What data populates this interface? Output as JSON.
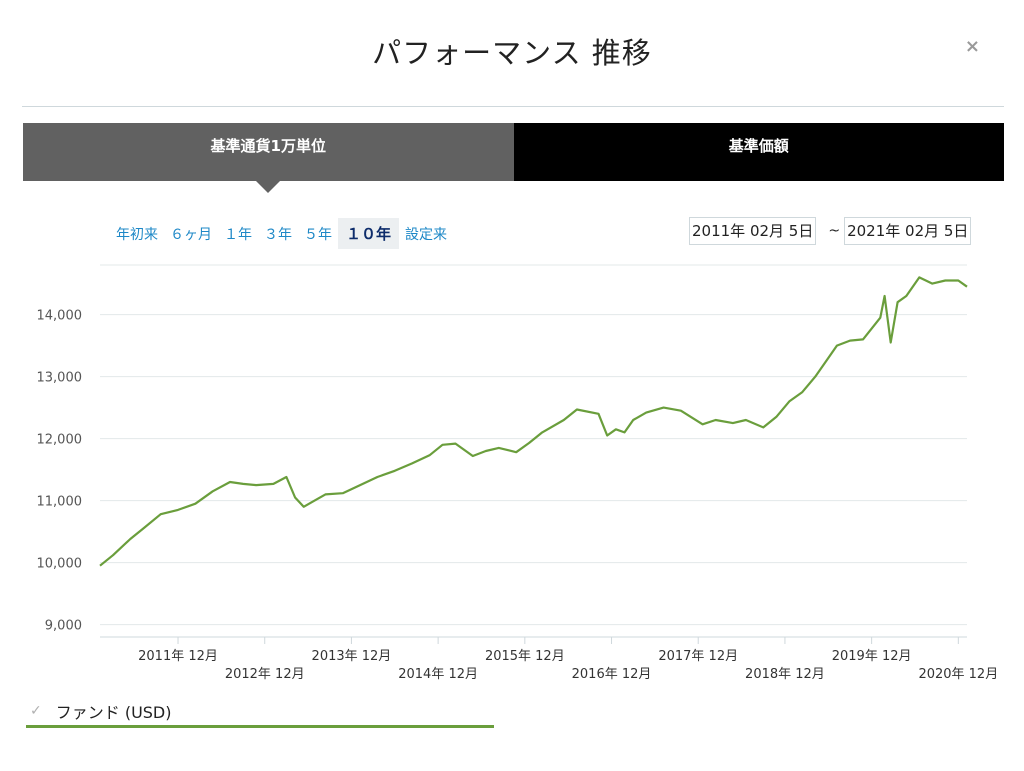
{
  "header": {
    "title": "パフォーマンス 推移",
    "close_label": "×"
  },
  "tabs": [
    {
      "label": "基準通貨1万単位",
      "active": true
    },
    {
      "label": "基準価額",
      "active": false
    }
  ],
  "ranges": [
    {
      "label": "年初来",
      "active": false
    },
    {
      "label": "６ヶ月",
      "active": false
    },
    {
      "label": "１年",
      "active": false
    },
    {
      "label": "３年",
      "active": false
    },
    {
      "label": "５年",
      "active": false
    },
    {
      "label": "１０年",
      "active": true
    },
    {
      "label": "設定来",
      "active": false
    }
  ],
  "date_range": {
    "start": "2011年 02月 5日",
    "separator": "~",
    "end": "2021年 02月 5日"
  },
  "legend": {
    "checked": true,
    "check_glyph": "✓",
    "label": "ファンド (USD)"
  },
  "colors": {
    "line": "#6a9e3c",
    "grid": "#e3e8ea",
    "axis_text": "#555555",
    "tab_active": "#616161",
    "tab_inactive": "#000000",
    "link": "#1e88c7"
  },
  "chart_data": {
    "type": "line",
    "ylim": [
      8800,
      14800
    ],
    "xlim": [
      2011.1,
      2021.1
    ],
    "yticks": [
      {
        "value": 9000,
        "label": "9,000"
      },
      {
        "value": 10000,
        "label": "10,000"
      },
      {
        "value": 11000,
        "label": "11,000"
      },
      {
        "value": 12000,
        "label": "12,000"
      },
      {
        "value": 13000,
        "label": "13,000"
      },
      {
        "value": 14000,
        "label": "14,000"
      }
    ],
    "xticks": [
      {
        "value": 2012.0,
        "label": "2011年 12月",
        "row": 1
      },
      {
        "value": 2013.0,
        "label": "2012年 12月",
        "row": 2
      },
      {
        "value": 2014.0,
        "label": "2013年 12月",
        "row": 1
      },
      {
        "value": 2015.0,
        "label": "2014年 12月",
        "row": 2
      },
      {
        "value": 2016.0,
        "label": "2015年 12月",
        "row": 1
      },
      {
        "value": 2017.0,
        "label": "2016年 12月",
        "row": 2
      },
      {
        "value": 2018.0,
        "label": "2017年 12月",
        "row": 1
      },
      {
        "value": 2019.0,
        "label": "2018年 12月",
        "row": 2
      },
      {
        "value": 2020.0,
        "label": "2019年 12月",
        "row": 1
      },
      {
        "value": 2021.0,
        "label": "2020年 12月",
        "row": 2
      }
    ],
    "grid": true,
    "series": [
      {
        "name": "ファンド (USD)",
        "x": [
          2011.1,
          2011.25,
          2011.45,
          2011.6,
          2011.8,
          2012.0,
          2012.2,
          2012.4,
          2012.6,
          2012.75,
          2012.9,
          2013.1,
          2013.25,
          2013.35,
          2013.45,
          2013.55,
          2013.7,
          2013.9,
          2014.1,
          2014.3,
          2014.5,
          2014.7,
          2014.9,
          2015.05,
          2015.2,
          2015.4,
          2015.55,
          2015.7,
          2015.9,
          2016.05,
          2016.2,
          2016.45,
          2016.6,
          2016.85,
          2016.95,
          2017.05,
          2017.15,
          2017.25,
          2017.4,
          2017.6,
          2017.8,
          2018.05,
          2018.2,
          2018.4,
          2018.55,
          2018.75,
          2018.9,
          2019.05,
          2019.2,
          2019.35,
          2019.5,
          2019.6,
          2019.75,
          2019.9,
          2020.1,
          2020.15,
          2020.22,
          2020.3,
          2020.4,
          2020.55,
          2020.7,
          2020.85,
          2021.0,
          2021.1
        ],
        "values": [
          9950,
          10120,
          10380,
          10550,
          10780,
          10850,
          10950,
          11150,
          11300,
          11270,
          11250,
          11270,
          11380,
          11050,
          10900,
          10980,
          11100,
          11120,
          11250,
          11380,
          11480,
          11600,
          11730,
          11900,
          11920,
          11720,
          11800,
          11850,
          11780,
          11930,
          12100,
          12300,
          12470,
          12400,
          12050,
          12150,
          12100,
          12300,
          12420,
          12500,
          12450,
          12230,
          12300,
          12250,
          12300,
          12180,
          12350,
          12600,
          12750,
          13000,
          13300,
          13500,
          13580,
          13600,
          13950,
          14300,
          13550,
          14200,
          14300,
          14600,
          14500,
          14550,
          14550,
          14450
        ]
      }
    ]
  }
}
